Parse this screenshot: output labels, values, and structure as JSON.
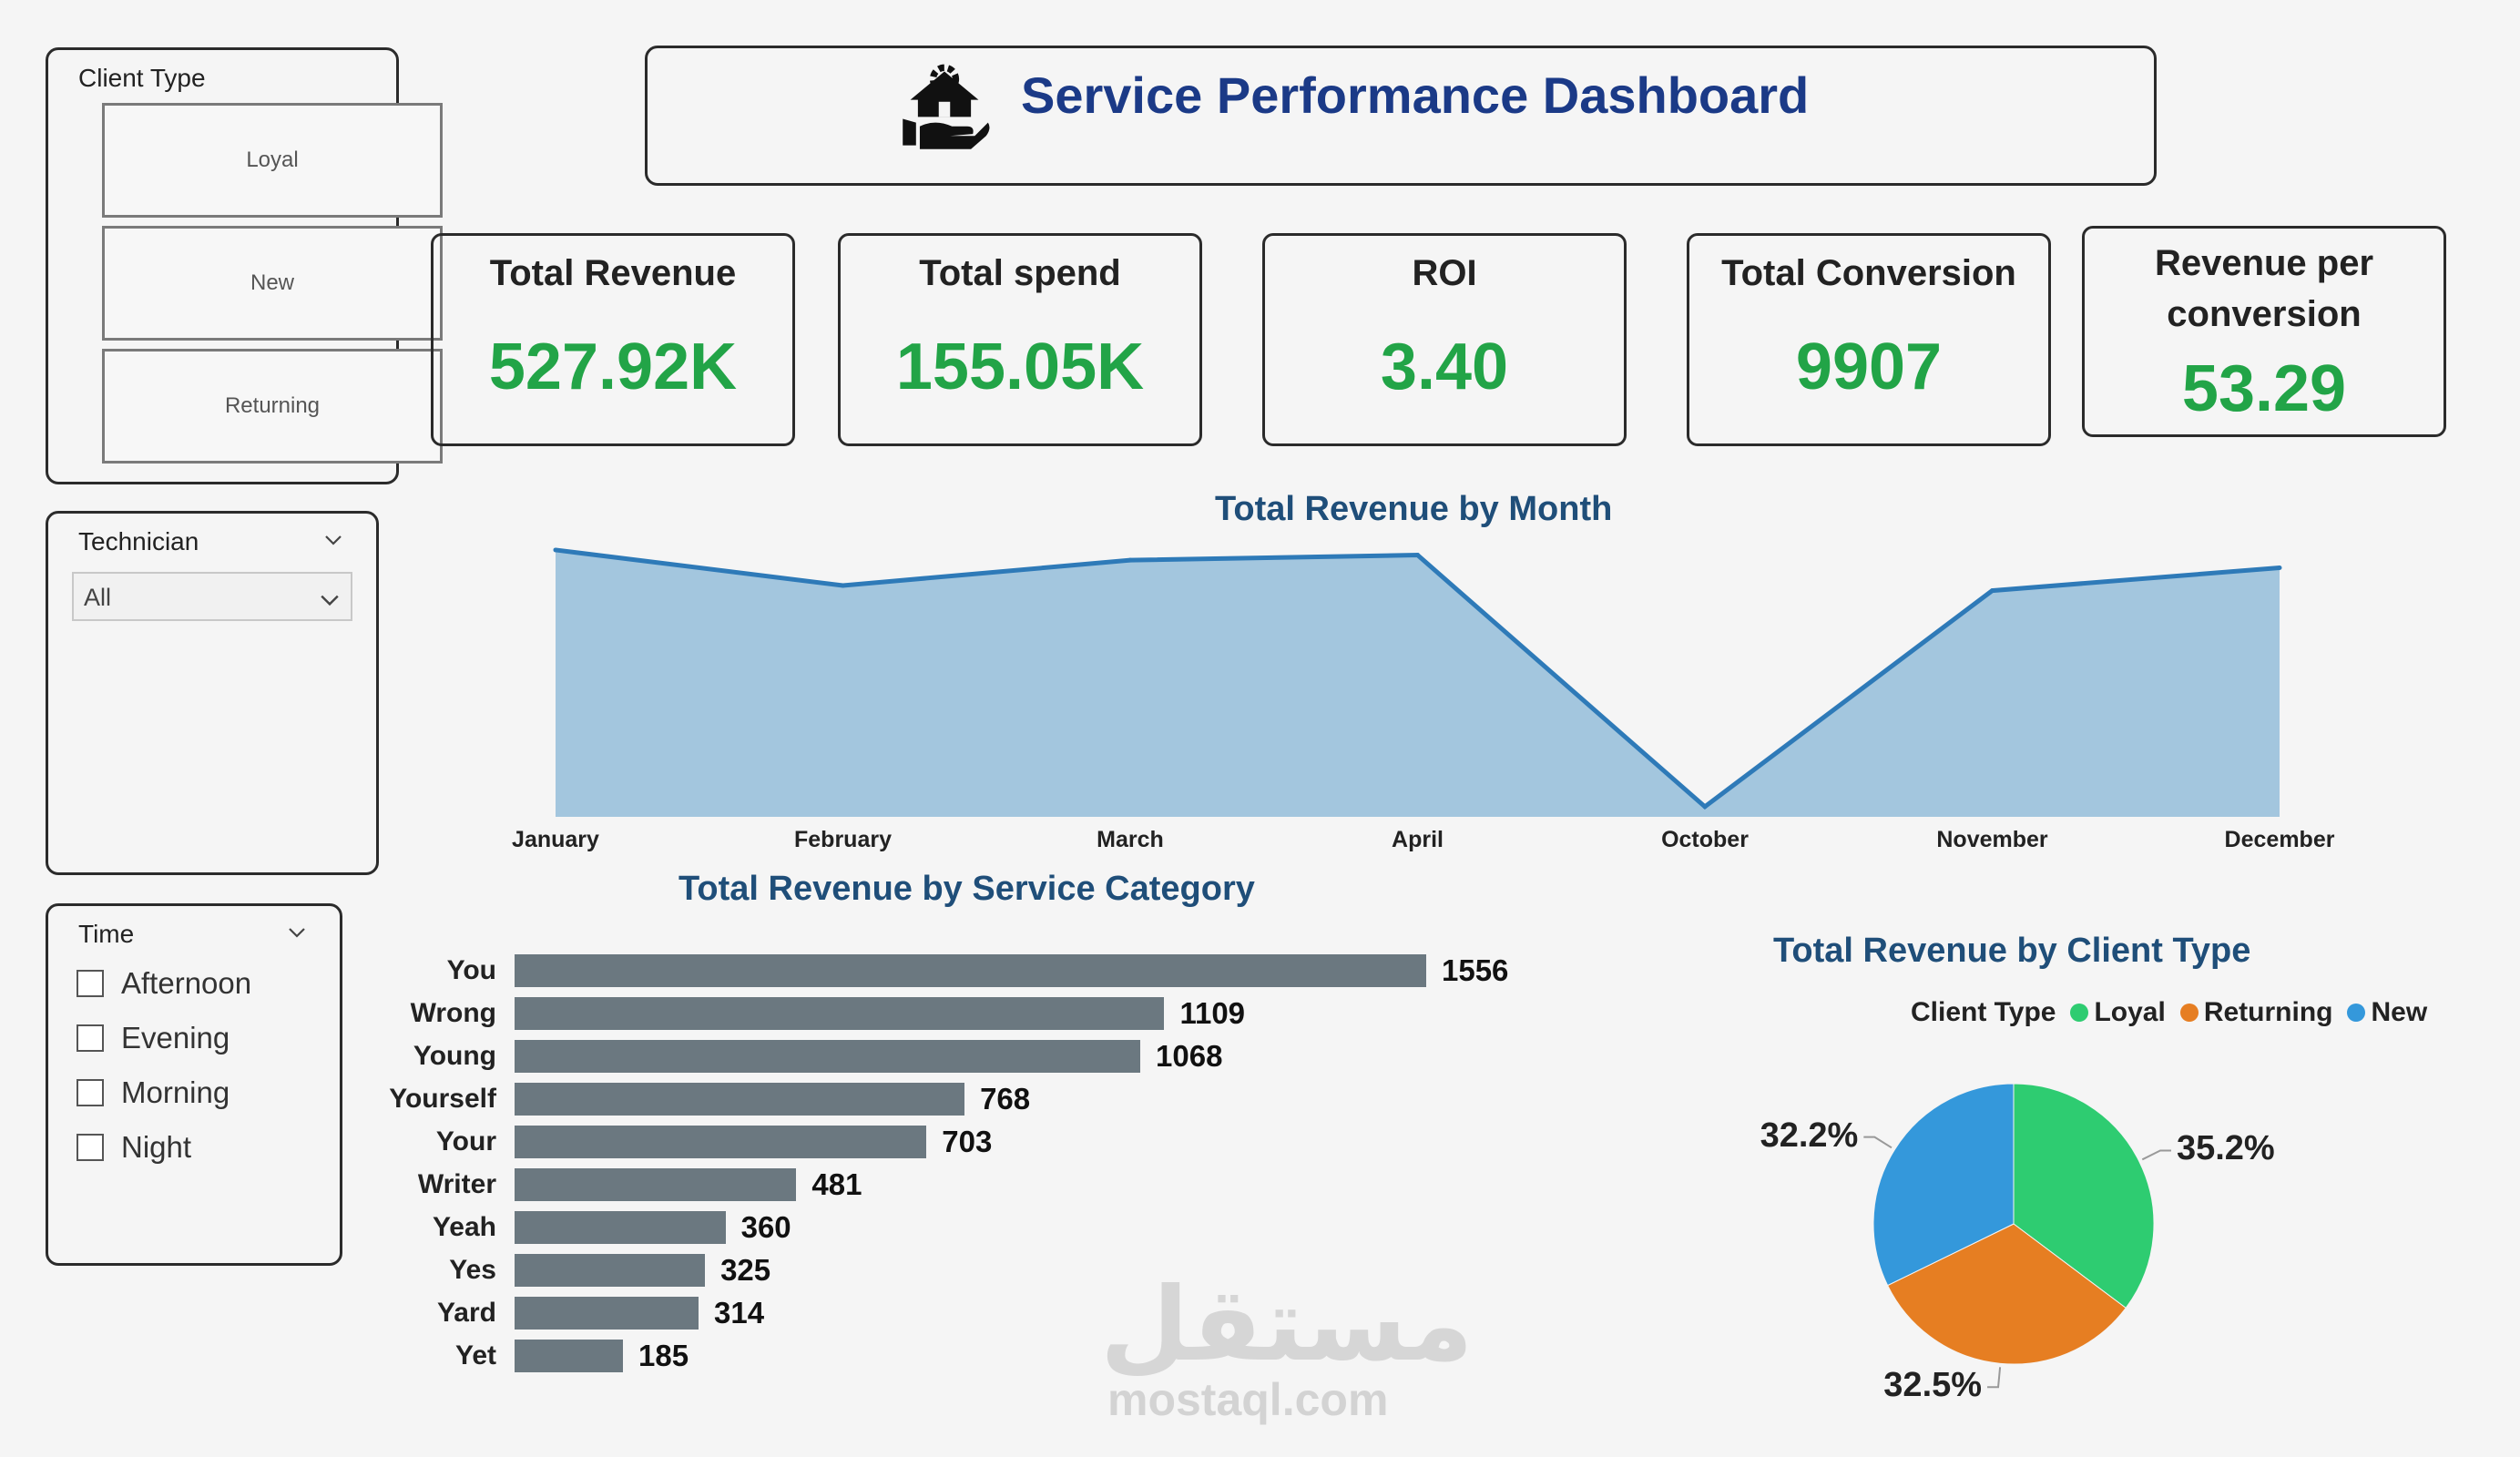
{
  "slicers": {
    "client_type": {
      "title": "Client Type",
      "options": [
        "Loyal",
        "New",
        "Returning"
      ]
    },
    "technician": {
      "title": "Technician",
      "selected": "All"
    },
    "time": {
      "title": "Time",
      "options": [
        "Afternoon",
        "Evening",
        "Morning",
        "Night"
      ]
    }
  },
  "header": {
    "title": "Service Performance Dashboard",
    "icon": "house-in-hand-icon"
  },
  "kpis": [
    {
      "title": "Total Revenue",
      "value": "527.92K"
    },
    {
      "title": "Total spend",
      "value": "155.05K"
    },
    {
      "title": "ROI",
      "value": "3.40"
    },
    {
      "title": "Total Conversion",
      "value": "9907"
    },
    {
      "title_line1": "Revenue per",
      "title_line2": "conversion",
      "value": "53.29"
    }
  ],
  "colors": {
    "kpi_value": "#22a447",
    "header_title": "#1b3a87",
    "chart_title": "#1f4e79",
    "area_fill": "#a3c6de",
    "area_line": "#2e7ab8",
    "bar": "#6b7880",
    "loyal": "#2ecc71",
    "returning": "#e67e22",
    "new": "#3498db"
  },
  "chart_data": [
    {
      "type": "area",
      "title": "Total Revenue by Month",
      "categories": [
        "January",
        "February",
        "March",
        "April",
        "October",
        "November",
        "December"
      ],
      "values": [
        52.5,
        45.5,
        50.5,
        51.5,
        2.0,
        44.5,
        49.0
      ],
      "ylim": [
        0,
        55
      ]
    },
    {
      "type": "bar",
      "orientation": "horizontal",
      "title": "Total Revenue by Service Category",
      "categories": [
        "You",
        "Wrong",
        "Young",
        "Yourself",
        "Your",
        "Writer",
        "Yeah",
        "Yes",
        "Yard",
        "Yet"
      ],
      "values": [
        1556,
        1109,
        1068,
        768,
        703,
        481,
        360,
        325,
        314,
        185
      ]
    },
    {
      "type": "pie",
      "title": "Total Revenue by Client Type",
      "legend_title": "Client Type",
      "legend_position": "top",
      "labels": [
        "Loyal",
        "Returning",
        "New"
      ],
      "values": [
        35.2,
        32.5,
        32.2
      ],
      "value_labels": [
        "35.2%",
        "32.5%",
        "32.2%"
      ]
    }
  ],
  "watermark": {
    "arabic": "مستقل",
    "latin": "mostaql.com"
  }
}
